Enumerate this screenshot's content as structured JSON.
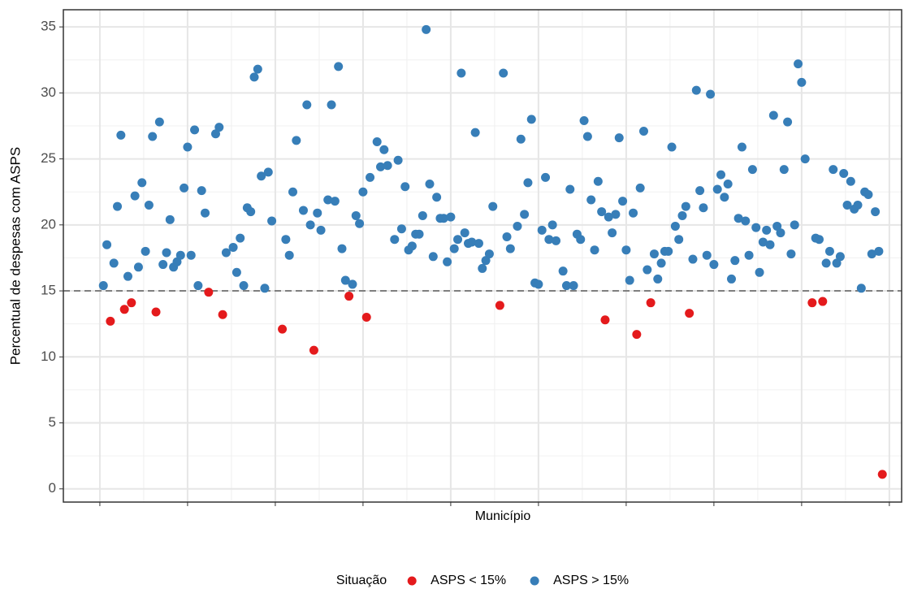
{
  "chart_data": {
    "type": "scatter",
    "xlabel": "Município",
    "ylabel": "Percentual de despesas com ASPS",
    "legend_title": "Situação",
    "xlim": [
      -10.4,
      228.5
    ],
    "xticks": [
      0,
      25,
      50,
      75,
      100,
      125,
      150,
      175,
      200,
      225
    ],
    "ylim": [
      -1,
      36.3
    ],
    "yticks": [
      0,
      5,
      10,
      15,
      20,
      25,
      30,
      35
    ],
    "grid": true,
    "hline": 15,
    "legend": "bottom",
    "series": [
      {
        "name": "ASPS < 15%",
        "color": "#E41A1C",
        "x": [
          3,
          7,
          9,
          16,
          31,
          35,
          52,
          61,
          71,
          76,
          114,
          144,
          153,
          157,
          168,
          203,
          206,
          223
        ],
        "values": [
          12.7,
          13.6,
          14.1,
          13.4,
          14.9,
          13.2,
          12.1,
          10.5,
          14.6,
          13.0,
          13.9,
          12.8,
          11.7,
          14.1,
          13.3,
          14.1,
          14.2,
          1.1
        ]
      },
      {
        "name": "ASPS > 15%",
        "color": "#377EB8",
        "x": [
          1,
          2,
          4,
          5,
          6,
          8,
          10,
          11,
          12,
          13,
          14,
          15,
          17,
          18,
          19,
          20,
          21,
          22,
          23,
          24,
          25,
          26,
          27,
          28,
          29,
          30,
          33,
          34,
          36,
          38,
          39,
          40,
          41,
          42,
          43,
          44,
          45,
          46,
          47,
          48,
          49,
          53,
          54,
          55,
          56,
          58,
          59,
          60,
          62,
          63,
          65,
          66,
          67,
          68,
          69,
          70,
          72,
          73,
          74,
          75,
          77,
          79,
          80,
          81,
          82,
          84,
          85,
          86,
          87,
          88,
          89,
          90,
          91,
          92,
          93,
          94,
          95,
          96,
          97,
          98,
          99,
          100,
          101,
          102,
          103,
          104,
          105,
          106,
          107,
          108,
          109,
          110,
          111,
          112,
          115,
          116,
          117,
          119,
          120,
          121,
          122,
          123,
          124,
          125,
          126,
          127,
          128,
          129,
          130,
          132,
          133,
          134,
          135,
          136,
          137,
          138,
          139,
          140,
          141,
          142,
          143,
          145,
          146,
          147,
          148,
          149,
          150,
          151,
          152,
          154,
          155,
          156,
          158,
          159,
          160,
          161,
          162,
          163,
          164,
          165,
          166,
          167,
          169,
          170,
          171,
          172,
          173,
          174,
          175,
          176,
          177,
          178,
          179,
          180,
          181,
          182,
          183,
          184,
          185,
          186,
          187,
          188,
          189,
          190,
          191,
          192,
          193,
          194,
          195,
          196,
          197,
          198,
          199,
          200,
          201,
          204,
          205,
          207,
          208,
          209,
          210,
          211,
          212,
          213,
          214,
          215,
          216,
          217,
          218,
          219,
          220,
          221,
          222
        ],
        "values": [
          15.4,
          18.5,
          17.1,
          21.4,
          26.8,
          16.1,
          22.2,
          16.8,
          23.2,
          18.0,
          21.5,
          26.7,
          27.8,
          17.0,
          17.9,
          20.4,
          16.8,
          17.2,
          17.7,
          22.8,
          25.9,
          17.7,
          27.2,
          15.4,
          22.6,
          20.9,
          26.9,
          27.4,
          17.9,
          18.3,
          16.4,
          19.0,
          15.4,
          21.3,
          21.0,
          31.2,
          31.8,
          23.7,
          15.2,
          24.0,
          20.3,
          18.9,
          17.7,
          22.5,
          26.4,
          21.1,
          29.1,
          20.0,
          20.9,
          19.6,
          21.9,
          29.1,
          21.8,
          32.0,
          18.2,
          15.8,
          15.5,
          20.7,
          20.1,
          22.5,
          23.6,
          26.3,
          24.4,
          25.7,
          24.5,
          18.9,
          24.9,
          19.7,
          22.9,
          18.1,
          18.4,
          19.3,
          19.3,
          20.7,
          34.8,
          23.1,
          17.6,
          22.1,
          20.5,
          20.5,
          17.2,
          20.6,
          18.2,
          18.9,
          31.5,
          19.4,
          18.6,
          18.7,
          27.0,
          18.6,
          16.7,
          17.3,
          17.8,
          21.4,
          31.5,
          19.1,
          18.2,
          19.9,
          26.5,
          20.8,
          23.2,
          28.0,
          15.6,
          15.5,
          19.6,
          23.6,
          18.9,
          20.0,
          18.8,
          16.5,
          15.4,
          22.7,
          15.4,
          19.3,
          18.9,
          27.9,
          26.7,
          21.9,
          18.1,
          23.3,
          21.0,
          20.6,
          19.4,
          20.8,
          26.6,
          21.8,
          18.1,
          15.8,
          20.9,
          22.8,
          27.1,
          16.6,
          17.8,
          15.9,
          17.1,
          18.0,
          18.0,
          25.9,
          19.9,
          18.9,
          20.7,
          21.4,
          17.4,
          30.2,
          22.6,
          21.3,
          17.7,
          29.9,
          17.0,
          22.7,
          23.8,
          22.1,
          23.1,
          15.9,
          17.3,
          20.5,
          25.9,
          20.3,
          17.7,
          24.2,
          19.8,
          16.4,
          18.7,
          19.6,
          18.5,
          28.3,
          19.9,
          19.4,
          24.2,
          27.8,
          17.8,
          20.0,
          32.2,
          30.8,
          25.0,
          19.0,
          18.9,
          17.1,
          18.0,
          24.2,
          17.1,
          17.6,
          23.9,
          21.5,
          23.3,
          21.2,
          21.5,
          15.2,
          22.5,
          22.3,
          17.8,
          21.0,
          18.0
        ]
      }
    ]
  }
}
